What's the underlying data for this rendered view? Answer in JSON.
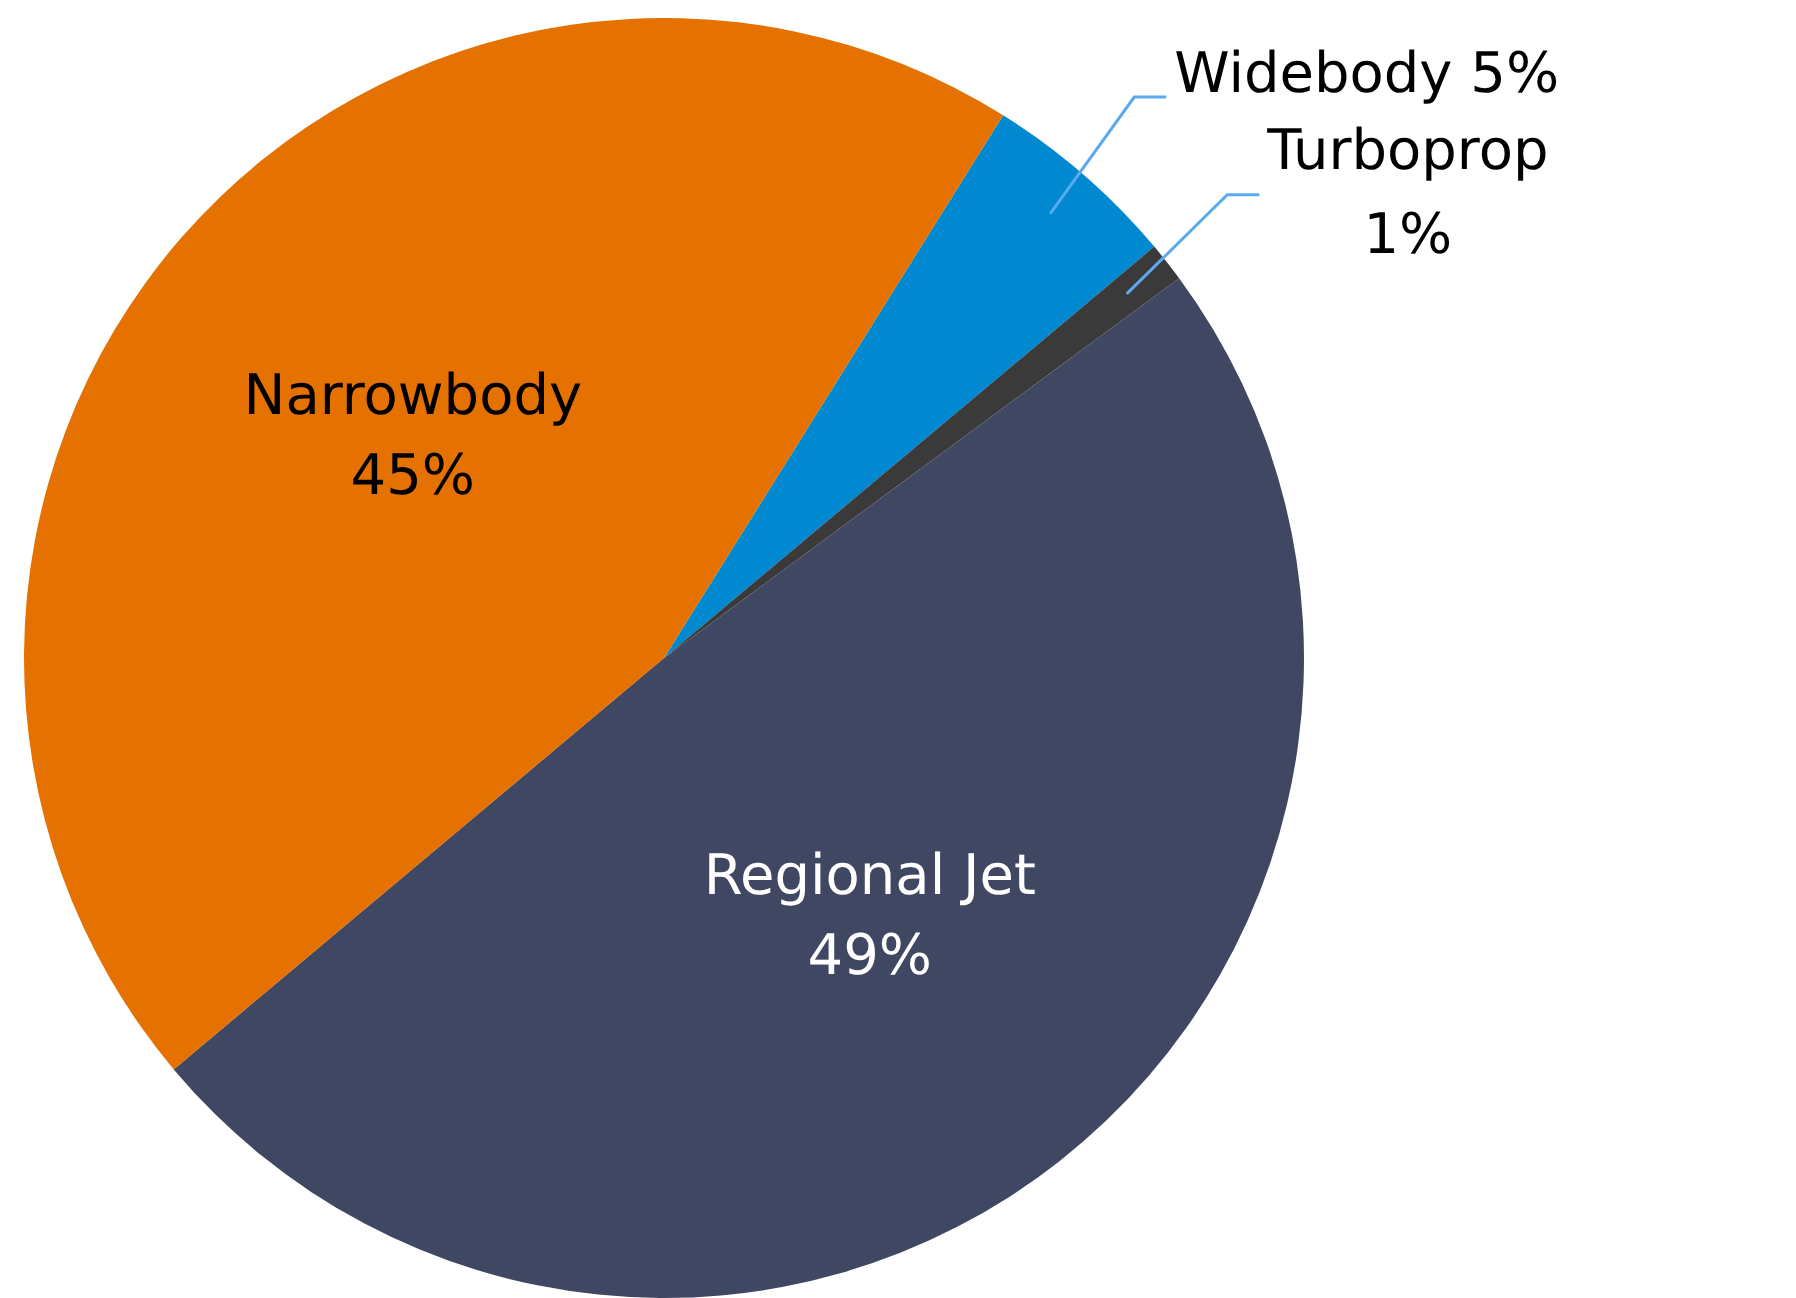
{
  "chart_data": {
    "type": "pie",
    "categories": [
      "Widebody",
      "Turboprop",
      "Regional Jet",
      "Narrowbody"
    ],
    "values": [
      5,
      1,
      49,
      45
    ],
    "colors": [
      "#0088d1",
      "#3a3a3a",
      "#404763",
      "#e57200"
    ],
    "value_labels": [
      "5%",
      "1%",
      "49%",
      "45%"
    ],
    "legend": false
  }
}
